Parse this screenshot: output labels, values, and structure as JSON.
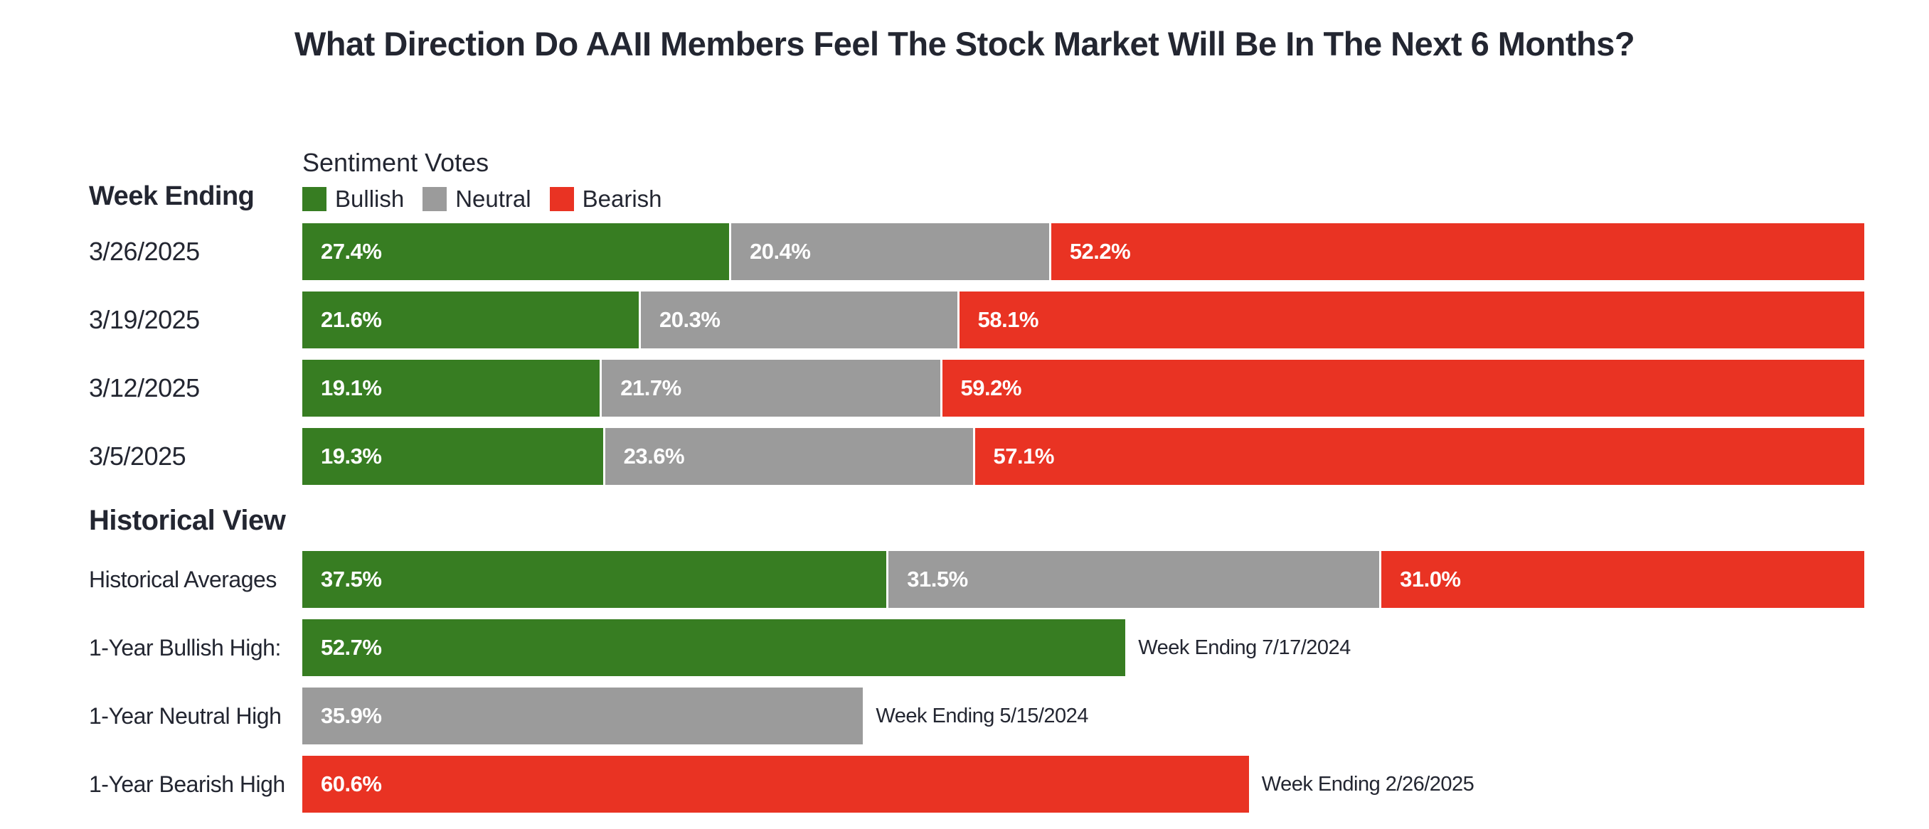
{
  "title": "What Direction Do AAII Members Feel The Stock Market Will Be In The Next 6 Months?",
  "colors": {
    "bullish": "#377D22",
    "neutral": "#9B9B9B",
    "bearish": "#E93323",
    "text": "#232631",
    "bar_label": "#FFFFFF",
    "background": "#FFFFFF"
  },
  "legend": {
    "title": "Sentiment Votes",
    "items": [
      {
        "label": "Bullish",
        "series": "bullish"
      },
      {
        "label": "Neutral",
        "series": "neutral"
      },
      {
        "label": "Bearish",
        "series": "bearish"
      }
    ]
  },
  "sections": {
    "weekly_header": "Week Ending",
    "historical_header": "Historical View"
  },
  "chart_data": {
    "type": "bar",
    "orientation": "horizontal",
    "stacked": true,
    "unit": "percent",
    "xlim": [
      0,
      100
    ],
    "grid": false,
    "legend_position": "top",
    "series_names": [
      "Bullish",
      "Neutral",
      "Bearish"
    ],
    "weekly_rows": [
      {
        "label": "3/26/2025",
        "values": {
          "bullish": 27.4,
          "neutral": 20.4,
          "bearish": 52.2
        }
      },
      {
        "label": "3/19/2025",
        "values": {
          "bullish": 21.6,
          "neutral": 20.3,
          "bearish": 58.1
        }
      },
      {
        "label": "3/12/2025",
        "values": {
          "bullish": 19.1,
          "neutral": 21.7,
          "bearish": 59.2
        }
      },
      {
        "label": "3/5/2025",
        "values": {
          "bullish": 19.3,
          "neutral": 23.6,
          "bearish": 57.1
        }
      }
    ],
    "historical_rows": [
      {
        "label": "Historical Averages",
        "kind": "stacked",
        "values": {
          "bullish": 37.5,
          "neutral": 31.5,
          "bearish": 31.0
        }
      },
      {
        "label": "1-Year Bullish High:",
        "kind": "single",
        "series": "bullish",
        "value": 52.7,
        "annotation": "Week Ending 7/17/2024"
      },
      {
        "label": "1-Year Neutral High",
        "kind": "single",
        "series": "neutral",
        "value": 35.9,
        "annotation": "Week Ending 5/15/2024"
      },
      {
        "label": "1-Year Bearish High",
        "kind": "single",
        "series": "bearish",
        "value": 60.6,
        "annotation": "Week Ending 2/26/2025"
      }
    ]
  }
}
